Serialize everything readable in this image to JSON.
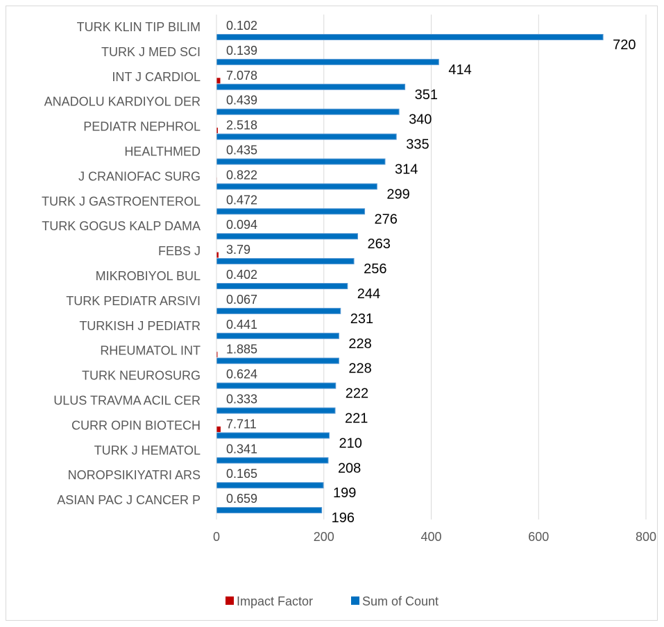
{
  "chart_data": {
    "type": "bar",
    "orientation": "horizontal",
    "categories": [
      "TURK KLIN TIP BILIM",
      "TURK J MED SCI",
      "INT J CARDIOL",
      "ANADOLU KARDIYOL DER",
      "PEDIATR NEPHROL",
      "HEALTHMED",
      "J CRANIOFAC SURG",
      "TURK J GASTROENTEROL",
      "TURK GOGUS KALP DAMA",
      "FEBS J",
      "MIKROBIYOL BUL",
      "TURK PEDIATR ARSIVI",
      "TURKISH J PEDIATR",
      "RHEUMATOL INT",
      "TURK NEUROSURG",
      "ULUS TRAVMA ACIL CER",
      "CURR OPIN BIOTECH",
      "TURK J HEMATOL",
      "NOROPSIKIYATRI ARS",
      "ASIAN PAC J CANCER P"
    ],
    "series": [
      {
        "name": "Impact Factor",
        "color": "#c00000",
        "values": [
          0.102,
          0.139,
          7.078,
          0.439,
          2.518,
          0.435,
          0.822,
          0.472,
          0.094,
          3.79,
          0.402,
          0.067,
          0.441,
          1.885,
          0.624,
          0.333,
          7.711,
          0.341,
          0.165,
          0.659
        ],
        "labels": [
          "0.102",
          "0.139",
          "7.078",
          "0.439",
          "2.518",
          "0.435",
          "0.822",
          "0.472",
          "0.094",
          "3.79",
          "0.402",
          "0.067",
          "0.441",
          "1.885",
          "0.624",
          "0.333",
          "7.711",
          "0.341",
          "0.165",
          "0.659"
        ]
      },
      {
        "name": "Sum of Count",
        "color": "#0070c0",
        "values": [
          720,
          414,
          351,
          340,
          335,
          314,
          299,
          276,
          263,
          256,
          244,
          231,
          228,
          228,
          222,
          221,
          210,
          208,
          199,
          196
        ],
        "labels": [
          "720",
          "414",
          "351",
          "340",
          "335",
          "314",
          "299",
          "276",
          "263",
          "256",
          "244",
          "231",
          "228",
          "228",
          "222",
          "221",
          "210",
          "208",
          "199",
          "196"
        ]
      }
    ],
    "xlim": [
      0,
      800
    ],
    "xticks": [
      0,
      200,
      400,
      600,
      800
    ],
    "xtick_labels": [
      "0",
      "200",
      "400",
      "600",
      "800"
    ],
    "grid": "vertical",
    "legend": "bottom",
    "title": "",
    "xlabel": "",
    "ylabel": ""
  }
}
